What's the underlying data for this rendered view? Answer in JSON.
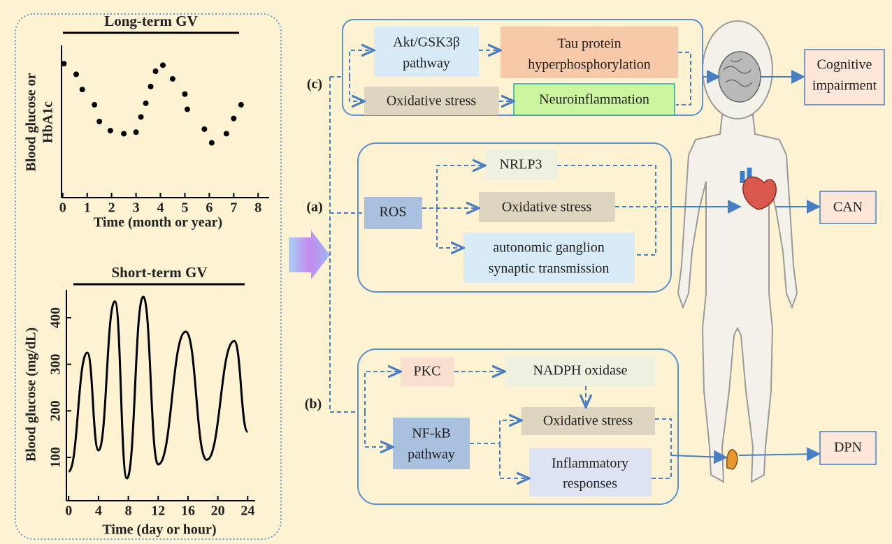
{
  "long_term_chart": {
    "type": "scatter",
    "title": "Long-term GV",
    "ylabel": [
      "Blood glucose or",
      "HbA1c"
    ],
    "xlabel": "Time (month or year)",
    "xlim": [
      -0.05,
      8.45
    ],
    "xticks": [
      0,
      1,
      2,
      3,
      4,
      5,
      6,
      7,
      8
    ],
    "ylim": [
      0,
      10
    ],
    "x": [
      0.05,
      0.55,
      0.8,
      1.3,
      1.5,
      1.95,
      2.5,
      3.0,
      3.2,
      3.4,
      3.6,
      3.8,
      4.1,
      4.5,
      5.0,
      5.1,
      5.8,
      6.1,
      6.7,
      7.0,
      7.3
    ],
    "values": [
      8.8,
      8.1,
      7.1,
      6.1,
      5.0,
      4.4,
      4.2,
      4.3,
      5.3,
      6.2,
      7.3,
      8.3,
      8.7,
      7.8,
      6.8,
      5.8,
      4.5,
      3.6,
      4.2,
      5.2,
      6.1
    ]
  },
  "short_term_chart": {
    "type": "line",
    "title": "Short-term GV",
    "ylabel": "Blood glucose (mg/dL)",
    "xlabel": "Time (day or hour)",
    "xlim": [
      -0.3,
      25
    ],
    "xticks": [
      0,
      4,
      8,
      12,
      16,
      20,
      24
    ],
    "ylim": [
      7,
      460
    ],
    "yticks": [
      100,
      200,
      300,
      400
    ],
    "x": [
      0,
      2.5,
      4,
      6.2,
      7.8,
      10,
      12,
      15.7,
      18.5,
      22.2,
      24
    ],
    "values": [
      70,
      325,
      115,
      435,
      55,
      445,
      85,
      370,
      95,
      350,
      155
    ]
  },
  "panel_c": {
    "label": "(c)",
    "akt": [
      "Akt/GSK3β",
      "pathway"
    ],
    "tau": [
      "Tau protein",
      "hyperphosphorylation"
    ],
    "oxidative": "Oxidative stress",
    "neuro": "Neuroinflammation",
    "outcome": [
      "Cognitive",
      "impairment"
    ]
  },
  "panel_a": {
    "label": "(a)",
    "ros": "ROS",
    "nrlp3": "NRLP3",
    "oxidative": "Oxidative stress",
    "autonomic": [
      "autonomic ganglion",
      "synaptic transmission"
    ],
    "outcome": "CAN"
  },
  "panel_b": {
    "label": "(b)",
    "pkc": "PKC",
    "nadph": "NADPH oxidase",
    "oxidative": "Oxidative stress",
    "nfkb": [
      "NF-kB",
      "pathway"
    ],
    "inflammatory": [
      "Inflammatory",
      "responses"
    ],
    "outcome": "DPN"
  }
}
